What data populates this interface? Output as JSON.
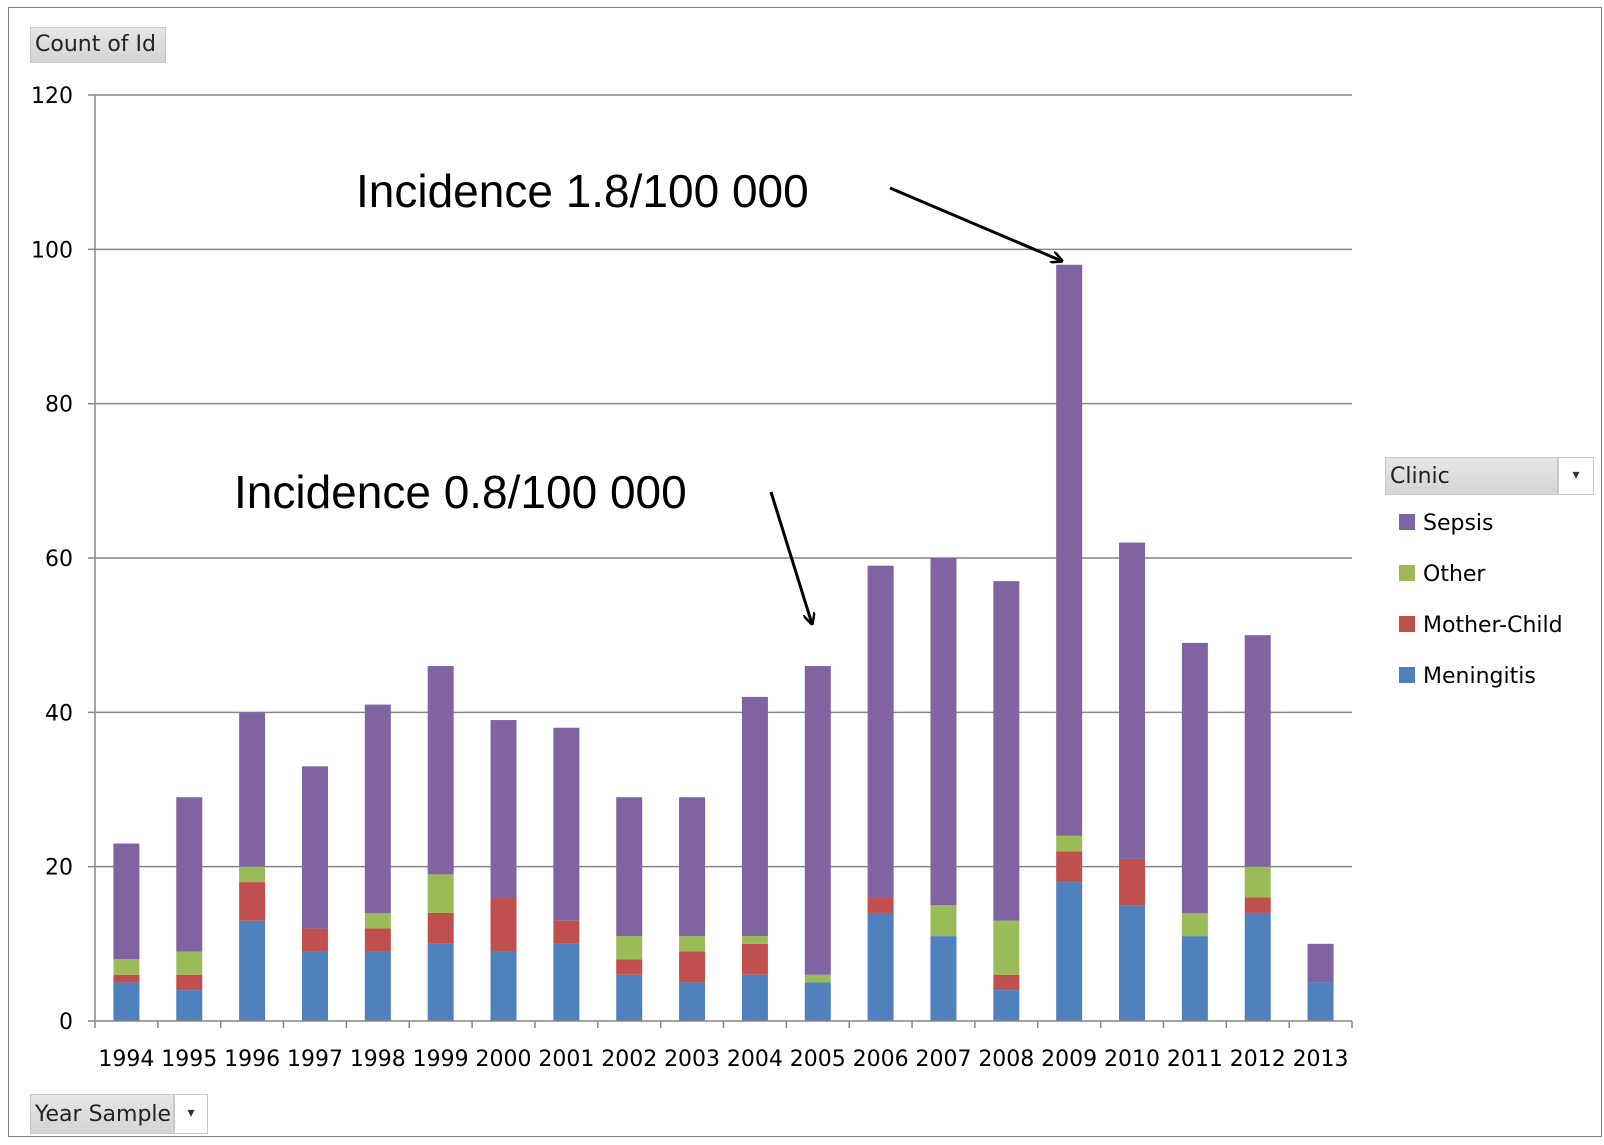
{
  "field_buttons": {
    "value_field": "Count of Id",
    "axis_field": "Year Sample",
    "legend_field": "Clinic",
    "dropdown_glyph": "▾"
  },
  "chart_data": {
    "type": "bar",
    "stacked": true,
    "categories": [
      "1994",
      "1995",
      "1996",
      "1997",
      "1998",
      "1999",
      "2000",
      "2001",
      "2002",
      "2003",
      "2004",
      "2005",
      "2006",
      "2007",
      "2008",
      "2009",
      "2010",
      "2011",
      "2012",
      "2013"
    ],
    "series": [
      {
        "name": "Meningitis",
        "color": "#4f81bd",
        "values": [
          5,
          4,
          13,
          9,
          9,
          10,
          9,
          10,
          6,
          5,
          6,
          5,
          14,
          11,
          4,
          18,
          15,
          11,
          14,
          5
        ]
      },
      {
        "name": "Mother-Child",
        "color": "#c0504d",
        "values": [
          1,
          2,
          5,
          3,
          3,
          4,
          7,
          3,
          2,
          4,
          4,
          0,
          2,
          0,
          2,
          4,
          6,
          0,
          2,
          0
        ]
      },
      {
        "name": "Other",
        "color": "#9bbb59",
        "values": [
          2,
          3,
          2,
          0,
          2,
          5,
          0,
          0,
          3,
          2,
          1,
          1,
          0,
          4,
          7,
          2,
          0,
          3,
          4,
          0
        ]
      },
      {
        "name": "Sepsis",
        "color": "#8064a2",
        "values": [
          15,
          20,
          20,
          21,
          27,
          27,
          23,
          25,
          18,
          18,
          31,
          40,
          43,
          45,
          44,
          74,
          41,
          35,
          30,
          5
        ]
      }
    ],
    "legend_order": [
      "Sepsis",
      "Other",
      "Mother-Child",
      "Meningitis"
    ],
    "legend_placement": "right",
    "ylim": [
      0,
      120
    ],
    "yticks": [
      0,
      20,
      40,
      60,
      80,
      100,
      120
    ],
    "grid": true,
    "annotations": [
      {
        "text": "Incidence 1.8/100 000",
        "target_category": "2009",
        "target_value": 98
      },
      {
        "text": "Incidence 0.8/100 000",
        "target_category": "2005",
        "target_value": 50
      }
    ]
  }
}
